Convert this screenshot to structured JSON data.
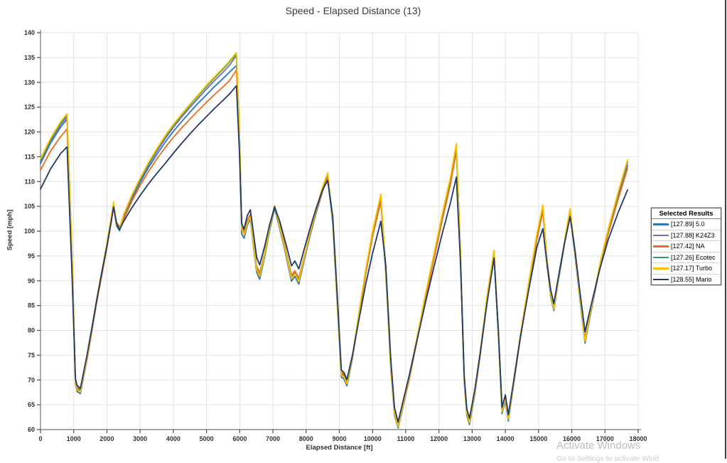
{
  "title": "Speed - Elapsed Distance (13)",
  "watermark": {
    "line1": "Activate Windows",
    "line2": "Go to Settings to activate Wind"
  },
  "chart_data": {
    "type": "line",
    "title": "Speed - Elapsed Distance (13)",
    "xlabel": "Elapsed Distance [ft]",
    "ylabel": "Speed [mph]",
    "xlim": [
      0,
      18000
    ],
    "x_tick_step": 1000,
    "ylim": [
      60,
      140
    ],
    "y_tick_step": 5,
    "grid": true,
    "grid_color": "#e2e2e2",
    "axis_color": "#8a8a8a",
    "tick_color": "#4a4a4a",
    "tick_label_color": "#303030",
    "legend": {
      "header": "Selected Results",
      "position": "right"
    },
    "x": [
      0,
      300,
      600,
      800,
      950,
      1050,
      1100,
      1200,
      1400,
      1550,
      1700,
      1850,
      2000,
      2120,
      2200,
      2290,
      2380,
      2500,
      2750,
      3000,
      3250,
      3500,
      3750,
      4000,
      4250,
      4500,
      4750,
      5000,
      5250,
      5500,
      5700,
      5900,
      5990,
      6060,
      6130,
      6230,
      6320,
      6420,
      6510,
      6600,
      6750,
      6900,
      7050,
      7200,
      7330,
      7460,
      7560,
      7660,
      7780,
      7920,
      8100,
      8300,
      8500,
      8650,
      8800,
      8950,
      9060,
      9140,
      9230,
      9400,
      9600,
      9800,
      10000,
      10250,
      10400,
      10550,
      10660,
      10770,
      10900,
      11100,
      11350,
      11600,
      11850,
      12100,
      12350,
      12525,
      12650,
      12760,
      12840,
      12920,
      13080,
      13250,
      13450,
      13660,
      13790,
      13900,
      14000,
      14090,
      14250,
      14450,
      14700,
      14950,
      15130,
      15260,
      15370,
      15460,
      15600,
      15780,
      15950,
      16100,
      16250,
      16400,
      16600,
      16850,
      17100,
      17400,
      17680
    ],
    "series": [
      {
        "name": "[127.89] 5.0",
        "color": "#2E75B6",
        "values": [
          113.6,
          117.7,
          120.9,
          122.6,
          94.6,
          69.25,
          67.65,
          67.25,
          74.1,
          80.1,
          86.0,
          91.5,
          96.9,
          101.8,
          105.2,
          101.0,
          100.1,
          102.6,
          106.5,
          109.8,
          112.8,
          115.4,
          117.9,
          120.1,
          122.1,
          124.0,
          125.8,
          127.5,
          129.2,
          130.8,
          132.1,
          133.4,
          119.0,
          99.4,
          98.6,
          101.2,
          102.5,
          96.5,
          91.7,
          90.3,
          94.8,
          100.1,
          104.6,
          100.6,
          97.0,
          92.9,
          89.9,
          90.9,
          89.3,
          93.5,
          98.6,
          103.6,
          108.1,
          110.9,
          101.5,
          83.5,
          70.6,
          70.2,
          68.8,
          74.5,
          83.4,
          91.8,
          99.1,
          106.4,
          91.3,
          72.0,
          62.9,
          60.3,
          64.1,
          70.0,
          78.4,
          86.8,
          94.6,
          102.5,
          109.9,
          116.6,
          94.4,
          69.6,
          62.8,
          61.0,
          67.1,
          75.45,
          86.3,
          95.4,
          78.5,
          63.2,
          65.8,
          61.7,
          69.1,
          78.4,
          88.8,
          98.6,
          104.3,
          93.0,
          86.6,
          84.0,
          90.1,
          97.4,
          103.8,
          95.0,
          86.0,
          77.4,
          84.5,
          92.8,
          99.6,
          106.8,
          113.2
        ]
      },
      {
        "name": "[127.88] K24Z3",
        "color": "#7B6DA8",
        "values": [
          113.9,
          118.1,
          121.4,
          123.1,
          95.2,
          69.9,
          68.3,
          67.9,
          74.35,
          80.3,
          86.25,
          91.75,
          97.2,
          102.15,
          105.5,
          101.5,
          100.6,
          102.95,
          106.9,
          110.25,
          113.3,
          116.05,
          118.6,
          120.9,
          123.0,
          124.95,
          126.8,
          128.65,
          130.4,
          132.05,
          133.5,
          135.4,
          120.3,
          100.8,
          99.5,
          101.85,
          103.1,
          97.3,
          92.55,
          91.25,
          95.2,
          100.45,
          105.0,
          101.2,
          97.65,
          93.7,
          90.7,
          91.65,
          90.1,
          93.9,
          99.0,
          104.0,
          108.6,
          111.35,
          102.2,
          84.3,
          71.3,
          70.85,
          69.5,
          74.85,
          83.75,
          92.2,
          99.6,
          107.0,
          92.3,
          72.8,
          63.6,
          60.9,
          64.4,
          70.3,
          78.75,
          87.2,
          95.1,
          103.05,
          110.5,
          117.1,
          95.25,
          70.3,
          63.5,
          61.7,
          67.4,
          75.8,
          86.7,
          95.85,
          79.25,
          63.9,
          66.45,
          62.4,
          69.4,
          78.75,
          89.2,
          99.1,
          104.8,
          93.75,
          87.3,
          84.6,
          90.4,
          97.8,
          104.25,
          95.75,
          86.8,
          78.1,
          84.8,
          93.2,
          100.1,
          107.4,
          113.7
        ]
      },
      {
        "name": "[127.42] NA",
        "color": "#ED6B1F",
        "values": [
          112.3,
          116.1,
          119.0,
          120.6,
          95.5,
          70.15,
          68.55,
          68.15,
          74.0,
          79.9,
          85.8,
          91.2,
          96.6,
          101.5,
          104.9,
          101.8,
          100.9,
          102.3,
          106.0,
          109.2,
          112.0,
          114.5,
          116.8,
          118.9,
          120.8,
          122.6,
          124.3,
          126.0,
          127.6,
          129.1,
          130.4,
          132.5,
          119.5,
          101.1,
          99.9,
          102.2,
          103.4,
          97.7,
          92.9,
          91.6,
          95.6,
          100.8,
          104.9,
          101.5,
          97.9,
          94.0,
          91.1,
          92.0,
          90.5,
          94.3,
          99.0,
          103.8,
          108.2,
          110.9,
          102.5,
          84.7,
          71.6,
          71.1,
          69.75,
          74.7,
          83.3,
          91.6,
          98.9,
          106.0,
          92.6,
          73.2,
          63.9,
          61.15,
          64.3,
          69.9,
          78.3,
          86.6,
          94.4,
          102.2,
          109.5,
          116.2,
          95.6,
          70.6,
          63.75,
          61.95,
          67.3,
          75.35,
          86.1,
          95.2,
          79.6,
          64.15,
          66.7,
          62.65,
          69.3,
          78.3,
          88.6,
          98.3,
          104.0,
          94.0,
          87.6,
          84.85,
          90.7,
          97.7,
          103.9,
          96.0,
          87.1,
          78.4,
          84.9,
          92.9,
          99.5,
          106.5,
          112.6
        ]
      },
      {
        "name": "[127.26] Ecotec",
        "color": "#27A85F",
        "values": [
          114.3,
          118.45,
          121.75,
          123.45,
          95.1,
          69.75,
          68.15,
          67.75,
          74.45,
          80.4,
          86.4,
          91.9,
          97.35,
          102.35,
          105.75,
          101.4,
          100.5,
          103.15,
          107.1,
          110.5,
          113.6,
          116.4,
          119.0,
          121.3,
          123.4,
          125.4,
          127.3,
          129.15,
          130.95,
          132.65,
          134.15,
          135.75,
          120.1,
          100.6,
          99.35,
          101.7,
          103.0,
          97.15,
          92.35,
          91.05,
          95.25,
          100.55,
          105.1,
          101.1,
          97.5,
          93.55,
          90.55,
          91.5,
          89.95,
          93.95,
          99.1,
          104.15,
          108.8,
          111.6,
          102.1,
          84.15,
          71.15,
          70.7,
          69.35,
          74.9,
          83.9,
          92.35,
          99.85,
          107.3,
          92.1,
          72.65,
          63.45,
          60.75,
          64.45,
          70.4,
          78.9,
          87.35,
          95.35,
          103.3,
          110.8,
          117.45,
          95.1,
          70.15,
          63.35,
          61.55,
          67.45,
          75.9,
          86.85,
          96.05,
          79.1,
          63.75,
          66.3,
          62.25,
          69.45,
          78.9,
          89.35,
          99.3,
          105.1,
          93.6,
          87.15,
          84.45,
          90.45,
          97.9,
          104.45,
          95.6,
          86.65,
          77.95,
          84.9,
          93.35,
          100.3,
          107.75,
          114.1
        ]
      },
      {
        "name": "[127.17] Turbo",
        "color": "#FFC000",
        "values": [
          114.6,
          118.7,
          122.0,
          123.7,
          95.0,
          69.6,
          68.0,
          67.6,
          74.5,
          80.5,
          86.5,
          92.0,
          97.5,
          102.5,
          105.9,
          101.3,
          100.4,
          103.3,
          107.3,
          110.7,
          113.8,
          116.6,
          119.2,
          121.5,
          123.6,
          125.6,
          127.5,
          129.4,
          131.2,
          132.9,
          134.4,
          136.0,
          120.0,
          100.5,
          99.2,
          101.6,
          102.9,
          97.0,
          92.2,
          90.9,
          95.3,
          100.6,
          105.2,
          101.0,
          97.4,
          93.4,
          90.4,
          91.4,
          89.8,
          94.0,
          99.2,
          104.3,
          109.0,
          111.8,
          102.0,
          84.0,
          71.0,
          70.6,
          69.2,
          75.0,
          84.0,
          92.5,
          100.0,
          107.5,
          92.0,
          72.5,
          63.3,
          60.6,
          64.5,
          70.5,
          79.0,
          87.5,
          95.5,
          103.5,
          111.0,
          117.7,
          95.0,
          70.0,
          63.2,
          61.4,
          67.5,
          76.0,
          87.0,
          96.2,
          79.0,
          63.6,
          66.2,
          62.1,
          69.5,
          79.0,
          89.5,
          99.5,
          105.3,
          93.5,
          87.0,
          84.3,
          90.5,
          98.0,
          104.6,
          95.5,
          86.5,
          77.8,
          85.0,
          93.5,
          100.5,
          108.0,
          114.4
        ]
      },
      {
        "name": "[128.55] Mario",
        "color": "#1F3864",
        "values": [
          108.5,
          112.5,
          115.6,
          117.0,
          91.0,
          70.3,
          68.9,
          68.3,
          75.0,
          80.6,
          86.4,
          91.8,
          97.0,
          101.6,
          104.9,
          101.5,
          100.3,
          101.9,
          104.7,
          107.2,
          109.5,
          111.6,
          113.6,
          115.7,
          117.7,
          119.6,
          121.4,
          123.1,
          124.8,
          126.4,
          127.7,
          129.3,
          116.0,
          101.5,
          100.4,
          103.2,
          104.3,
          99.2,
          94.7,
          93.2,
          96.9,
          101.3,
          104.9,
          102.1,
          98.9,
          95.7,
          93.0,
          94.0,
          92.4,
          95.8,
          100.1,
          104.6,
          108.4,
          110.2,
          103.0,
          85.5,
          72.0,
          71.5,
          70.1,
          75.2,
          82.5,
          89.5,
          95.5,
          102.0,
          93.0,
          74.2,
          64.4,
          61.5,
          65.2,
          70.8,
          78.3,
          85.8,
          92.8,
          99.5,
          105.8,
          110.9,
          93.5,
          70.9,
          64.1,
          62.3,
          68.0,
          75.8,
          85.6,
          94.6,
          80.0,
          64.5,
          67.0,
          63.0,
          69.8,
          78.5,
          88.0,
          96.8,
          100.5,
          93.0,
          88.0,
          85.4,
          90.9,
          97.5,
          102.9,
          96.0,
          87.6,
          79.7,
          85.6,
          92.5,
          98.3,
          103.8,
          108.3
        ]
      }
    ]
  }
}
